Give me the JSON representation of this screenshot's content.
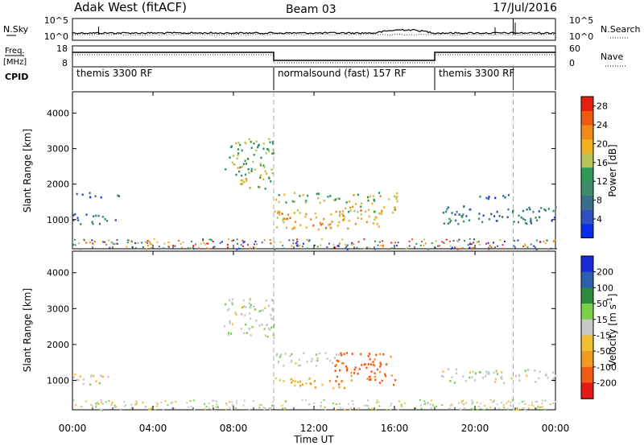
{
  "header": {
    "site": "Adak West (fitACF)",
    "beam": "Beam 03",
    "date": "17/Jul/2016"
  },
  "strip_labels": {
    "nsky": "N.Sky",
    "nsearch": "N.Search",
    "freq": "Freq.",
    "freq_unit": "[MHz]",
    "nave": "Nave",
    "cpid": "CPID"
  },
  "strip_ticks": {
    "noise_left": [
      "10^5",
      "10^0"
    ],
    "noise_right": [
      "10^5",
      "10^0"
    ],
    "freq_left": [
      "18",
      "8"
    ],
    "nave_right": [
      "60",
      "0"
    ]
  },
  "cpid_segments": [
    {
      "label": "themis 3300 RF",
      "start_hour": 0,
      "end_hour": 10
    },
    {
      "label": "normalsound (fast) 157 RF",
      "start_hour": 10,
      "end_hour": 18
    },
    {
      "label": "themis 3300 RF",
      "start_hour": 18,
      "end_hour": 24
    }
  ],
  "colors": {
    "power": [
      "#0a2cf0",
      "#2f50c0",
      "#3a6e8a",
      "#3f8a6a",
      "#2f9a57",
      "#b9c35a",
      "#f0b020",
      "#f08a18",
      "#f05a10",
      "#e62010"
    ],
    "velocity": [
      "#e81818",
      "#f05a14",
      "#f09a20",
      "#f0c030",
      "#c8c8c8",
      "#7ad04a",
      "#2c8a3c",
      "#2d5fb0",
      "#1a2ad8"
    ]
  },
  "chart_data": [
    {
      "type": "heatmap",
      "title": "",
      "xlabel": "",
      "ylabel": "Slant Range [km]",
      "xlim": [
        0,
        24
      ],
      "ylim": [
        180,
        4600
      ],
      "x_ticks": [
        0,
        4,
        8,
        12,
        16,
        20,
        24
      ],
      "y_ticks": [
        1000,
        2000,
        3000,
        4000
      ],
      "colorbar": {
        "label": "Power [dB]",
        "range": [
          0,
          30
        ],
        "ticks": [
          4,
          8,
          12,
          16,
          20,
          24,
          28
        ]
      },
      "echo_regions": [
        {
          "t0": 0.0,
          "t1": 2.2,
          "r0": 900,
          "r1": 1200,
          "power": 8
        },
        {
          "t0": 0.0,
          "t1": 2.5,
          "r0": 1650,
          "r1": 1780,
          "power": 6
        },
        {
          "t0": 7.5,
          "t1": 10.0,
          "r0": 2200,
          "r1": 3300,
          "power": 14
        },
        {
          "t0": 8.3,
          "t1": 10.0,
          "r0": 1900,
          "r1": 2300,
          "power": 18
        },
        {
          "t0": 10.0,
          "t1": 13.3,
          "r0": 1500,
          "r1": 1800,
          "power": 15
        },
        {
          "t0": 10.0,
          "t1": 15.5,
          "r0": 750,
          "r1": 1300,
          "power": 20
        },
        {
          "t0": 13.5,
          "t1": 16.2,
          "r0": 1200,
          "r1": 1800,
          "power": 17
        },
        {
          "t0": 18.3,
          "t1": 24.0,
          "r0": 900,
          "r1": 1400,
          "power": 8
        },
        {
          "t0": 20.0,
          "t1": 22.0,
          "r0": 1600,
          "r1": 1750,
          "power": 5
        }
      ]
    },
    {
      "type": "heatmap",
      "title": "",
      "xlabel": "Time UT",
      "ylabel": "Slant Range [km]",
      "xlim": [
        0,
        24
      ],
      "ylim": [
        180,
        4600
      ],
      "x_ticks": [
        0,
        4,
        8,
        12,
        16,
        20,
        24
      ],
      "x_tick_labels": [
        "00:00",
        "04:00",
        "08:00",
        "12:00",
        "16:00",
        "20:00",
        "00:00"
      ],
      "y_ticks": [
        1000,
        2000,
        3000,
        4000
      ],
      "colorbar": {
        "label": "Velocity [m s^-1]",
        "ticks": [
          200,
          100,
          50,
          15,
          -15,
          -50,
          -100,
          -200
        ]
      },
      "echo_regions": [
        {
          "t0": 0.0,
          "t1": 2.2,
          "r0": 900,
          "r1": 1200,
          "velocity": 0
        },
        {
          "t0": 7.5,
          "t1": 10.0,
          "r0": 2200,
          "r1": 3300,
          "velocity": 0
        },
        {
          "t0": 10.0,
          "t1": 13.3,
          "r0": 1400,
          "r1": 1800,
          "velocity": 0
        },
        {
          "t0": 10.0,
          "t1": 13.5,
          "r0": 800,
          "r1": 1100,
          "velocity": -40
        },
        {
          "t0": 13.0,
          "t1": 16.0,
          "r0": 900,
          "r1": 1800,
          "velocity": -90
        },
        {
          "t0": 18.3,
          "t1": 24.0,
          "r0": 950,
          "r1": 1350,
          "velocity": 0
        }
      ]
    }
  ]
}
